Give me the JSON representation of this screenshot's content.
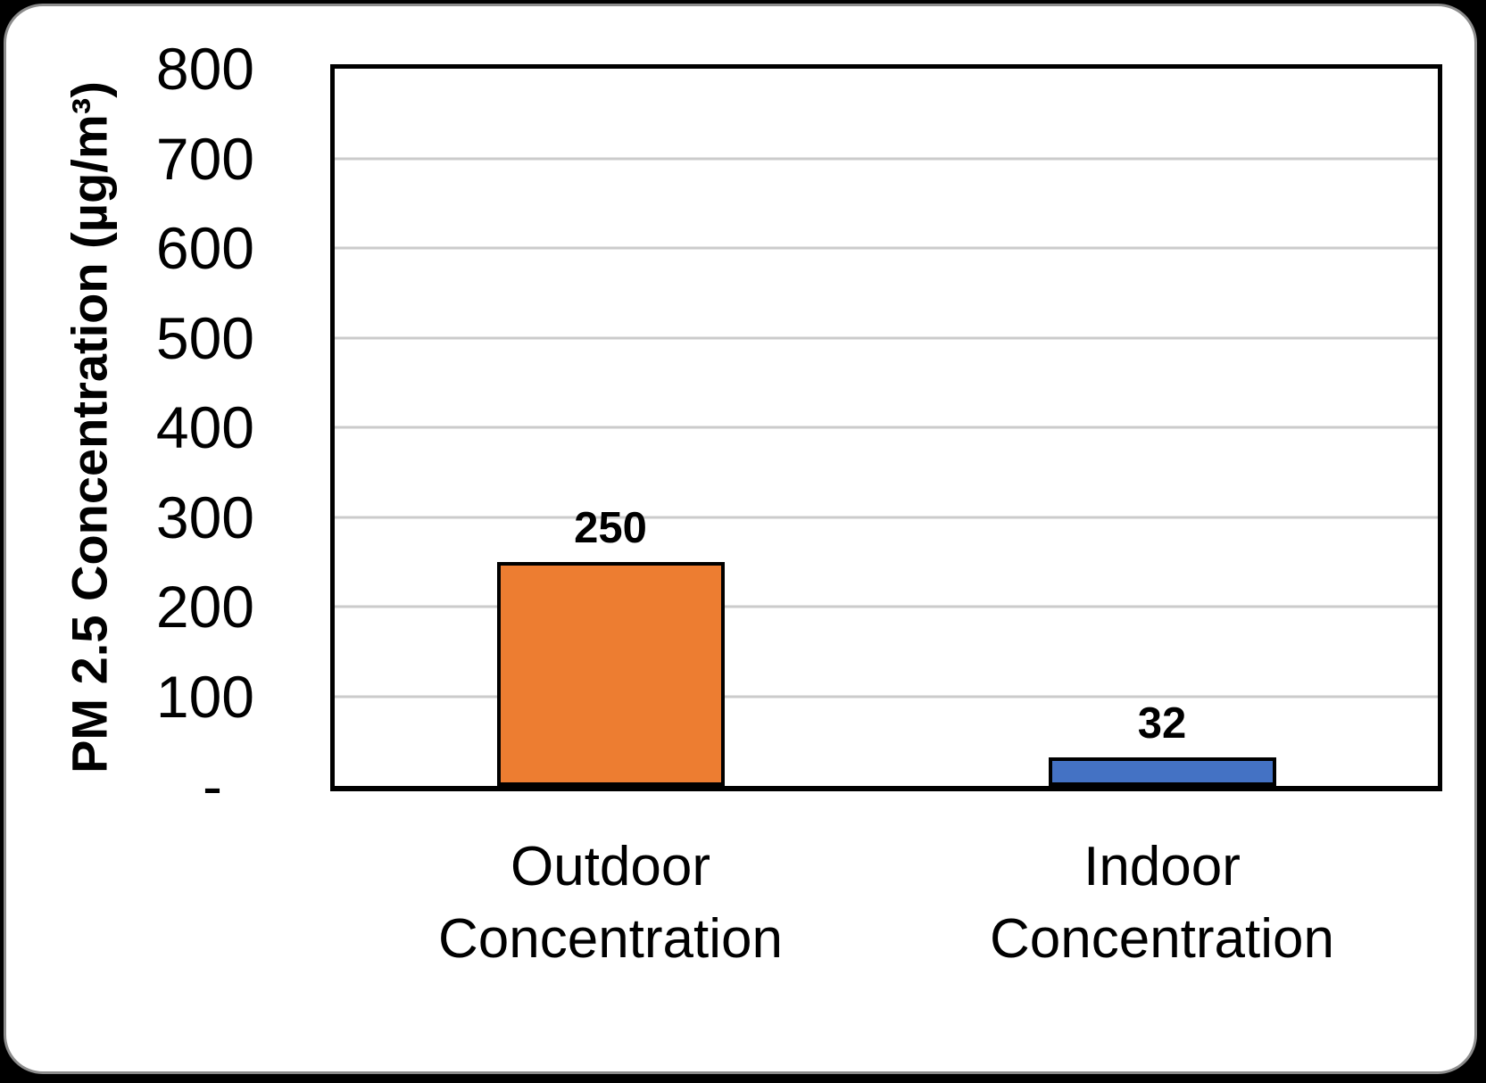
{
  "canvas": {
    "background": "#000000",
    "card_background": "#FFFFFF",
    "card_border_color": "#8C8C8C"
  },
  "chart_data": {
    "type": "bar",
    "categories": [
      "Outdoor Concentration",
      "Indoor Concentration"
    ],
    "values": [
      250,
      32
    ],
    "data_labels": [
      "250",
      "32"
    ],
    "bar_colors": [
      "#ED7D31",
      "#4472C4"
    ],
    "bar_border_color": "#000000",
    "title": "",
    "xlabel": "",
    "ylabel": "PM 2.5 Concentration (µg/m³)",
    "ylim": [
      0,
      800
    ],
    "ytick_step": 100,
    "yticks": [
      {
        "value": 800,
        "label": "800"
      },
      {
        "value": 700,
        "label": "700"
      },
      {
        "value": 600,
        "label": "600"
      },
      {
        "value": 500,
        "label": "500"
      },
      {
        "value": 400,
        "label": "400"
      },
      {
        "value": 300,
        "label": "300"
      },
      {
        "value": 200,
        "label": "200"
      },
      {
        "value": 100,
        "label": "100"
      },
      {
        "value": 0,
        "label": "-"
      }
    ],
    "grid": "horizontal",
    "gridline_color": "#CBCBCB",
    "legend": "none"
  }
}
